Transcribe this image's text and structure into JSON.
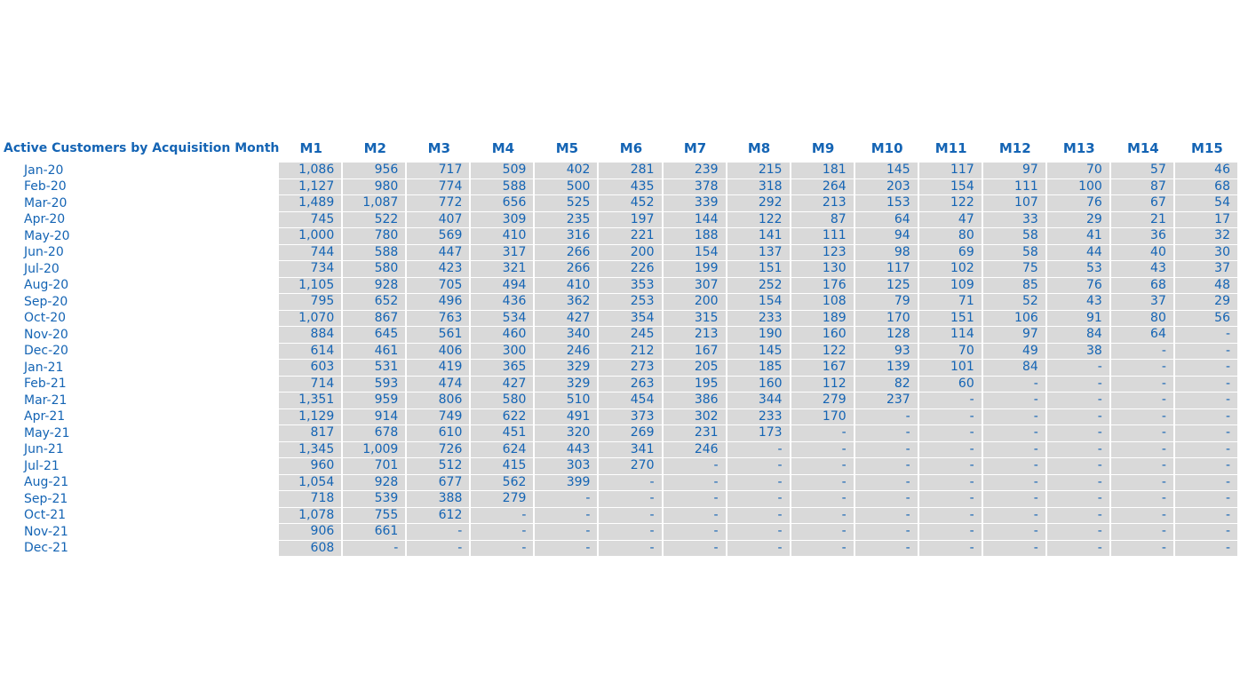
{
  "table": {
    "title": "Active Customers by Acquisition Month",
    "columns": [
      "M1",
      "M2",
      "M3",
      "M4",
      "M5",
      "M6",
      "M7",
      "M8",
      "M9",
      "M10",
      "M11",
      "M12",
      "M13",
      "M14",
      "M15"
    ],
    "rows": [
      {
        "label": "Jan-20",
        "values": [
          "1,086",
          "956",
          "717",
          "509",
          "402",
          "281",
          "239",
          "215",
          "181",
          "145",
          "117",
          "97",
          "70",
          "57",
          "46"
        ]
      },
      {
        "label": "Feb-20",
        "values": [
          "1,127",
          "980",
          "774",
          "588",
          "500",
          "435",
          "378",
          "318",
          "264",
          "203",
          "154",
          "111",
          "100",
          "87",
          "68"
        ]
      },
      {
        "label": "Mar-20",
        "values": [
          "1,489",
          "1,087",
          "772",
          "656",
          "525",
          "452",
          "339",
          "292",
          "213",
          "153",
          "122",
          "107",
          "76",
          "67",
          "54"
        ]
      },
      {
        "label": "Apr-20",
        "values": [
          "745",
          "522",
          "407",
          "309",
          "235",
          "197",
          "144",
          "122",
          "87",
          "64",
          "47",
          "33",
          "29",
          "21",
          "17"
        ]
      },
      {
        "label": "May-20",
        "values": [
          "1,000",
          "780",
          "569",
          "410",
          "316",
          "221",
          "188",
          "141",
          "111",
          "94",
          "80",
          "58",
          "41",
          "36",
          "32"
        ]
      },
      {
        "label": "Jun-20",
        "values": [
          "744",
          "588",
          "447",
          "317",
          "266",
          "200",
          "154",
          "137",
          "123",
          "98",
          "69",
          "58",
          "44",
          "40",
          "30"
        ]
      },
      {
        "label": "Jul-20",
        "values": [
          "734",
          "580",
          "423",
          "321",
          "266",
          "226",
          "199",
          "151",
          "130",
          "117",
          "102",
          "75",
          "53",
          "43",
          "37"
        ]
      },
      {
        "label": "Aug-20",
        "values": [
          "1,105",
          "928",
          "705",
          "494",
          "410",
          "353",
          "307",
          "252",
          "176",
          "125",
          "109",
          "85",
          "76",
          "68",
          "48"
        ]
      },
      {
        "label": "Sep-20",
        "values": [
          "795",
          "652",
          "496",
          "436",
          "362",
          "253",
          "200",
          "154",
          "108",
          "79",
          "71",
          "52",
          "43",
          "37",
          "29"
        ]
      },
      {
        "label": "Oct-20",
        "values": [
          "1,070",
          "867",
          "763",
          "534",
          "427",
          "354",
          "315",
          "233",
          "189",
          "170",
          "151",
          "106",
          "91",
          "80",
          "56"
        ]
      },
      {
        "label": "Nov-20",
        "values": [
          "884",
          "645",
          "561",
          "460",
          "340",
          "245",
          "213",
          "190",
          "160",
          "128",
          "114",
          "97",
          "84",
          "64",
          "-"
        ]
      },
      {
        "label": "Dec-20",
        "values": [
          "614",
          "461",
          "406",
          "300",
          "246",
          "212",
          "167",
          "145",
          "122",
          "93",
          "70",
          "49",
          "38",
          "-",
          "-"
        ]
      },
      {
        "label": "Jan-21",
        "values": [
          "603",
          "531",
          "419",
          "365",
          "329",
          "273",
          "205",
          "185",
          "167",
          "139",
          "101",
          "84",
          "-",
          "-",
          "-"
        ]
      },
      {
        "label": "Feb-21",
        "values": [
          "714",
          "593",
          "474",
          "427",
          "329",
          "263",
          "195",
          "160",
          "112",
          "82",
          "60",
          "-",
          "-",
          "-",
          "-"
        ]
      },
      {
        "label": "Mar-21",
        "values": [
          "1,351",
          "959",
          "806",
          "580",
          "510",
          "454",
          "386",
          "344",
          "279",
          "237",
          "-",
          "-",
          "-",
          "-",
          "-"
        ]
      },
      {
        "label": "Apr-21",
        "values": [
          "1,129",
          "914",
          "749",
          "622",
          "491",
          "373",
          "302",
          "233",
          "170",
          "-",
          "-",
          "-",
          "-",
          "-",
          "-"
        ]
      },
      {
        "label": "May-21",
        "values": [
          "817",
          "678",
          "610",
          "451",
          "320",
          "269",
          "231",
          "173",
          "-",
          "-",
          "-",
          "-",
          "-",
          "-",
          "-"
        ]
      },
      {
        "label": "Jun-21",
        "values": [
          "1,345",
          "1,009",
          "726",
          "624",
          "443",
          "341",
          "246",
          "-",
          "-",
          "-",
          "-",
          "-",
          "-",
          "-",
          "-"
        ]
      },
      {
        "label": "Jul-21",
        "values": [
          "960",
          "701",
          "512",
          "415",
          "303",
          "270",
          "-",
          "-",
          "-",
          "-",
          "-",
          "-",
          "-",
          "-",
          "-"
        ]
      },
      {
        "label": "Aug-21",
        "values": [
          "1,054",
          "928",
          "677",
          "562",
          "399",
          "-",
          "-",
          "-",
          "-",
          "-",
          "-",
          "-",
          "-",
          "-",
          "-"
        ]
      },
      {
        "label": "Sep-21",
        "values": [
          "718",
          "539",
          "388",
          "279",
          "-",
          "-",
          "-",
          "-",
          "-",
          "-",
          "-",
          "-",
          "-",
          "-",
          "-"
        ]
      },
      {
        "label": "Oct-21",
        "values": [
          "1,078",
          "755",
          "612",
          "-",
          "-",
          "-",
          "-",
          "-",
          "-",
          "-",
          "-",
          "-",
          "-",
          "-",
          "-"
        ]
      },
      {
        "label": "Nov-21",
        "values": [
          "906",
          "661",
          "-",
          "-",
          "-",
          "-",
          "-",
          "-",
          "-",
          "-",
          "-",
          "-",
          "-",
          "-",
          "-"
        ]
      },
      {
        "label": "Dec-21",
        "values": [
          "608",
          "-",
          "-",
          "-",
          "-",
          "-",
          "-",
          "-",
          "-",
          "-",
          "-",
          "-",
          "-",
          "-",
          "-"
        ]
      }
    ]
  }
}
